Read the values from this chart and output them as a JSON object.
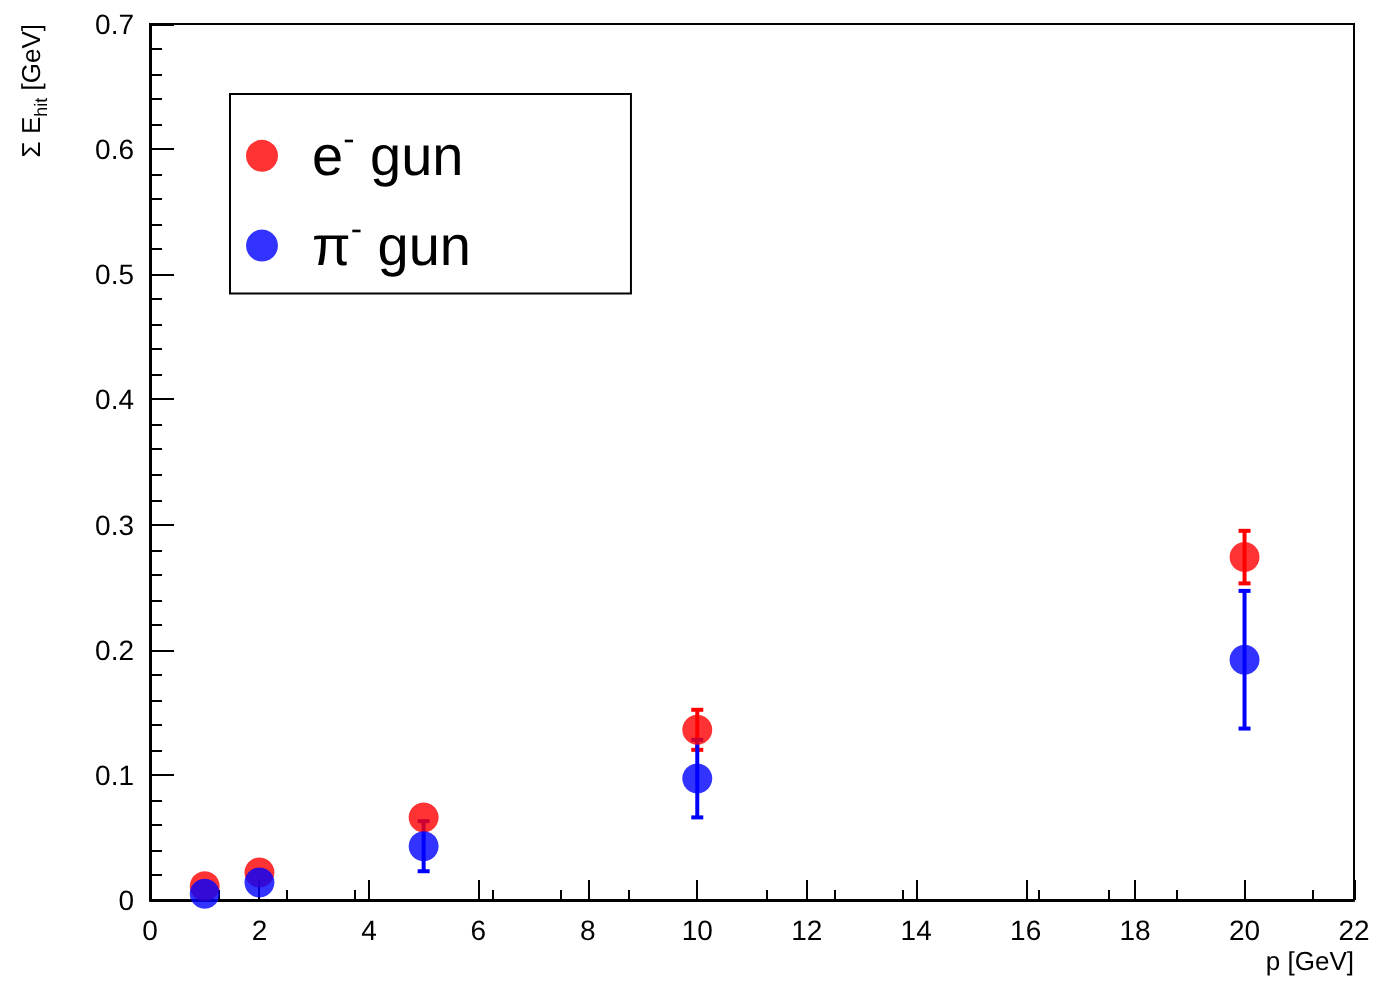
{
  "chart_data": {
    "type": "scatter",
    "xlabel": "p [GeV]",
    "ylabel": "Σ E$_{hit}$ [GeV]",
    "x": [
      1,
      2,
      5,
      10,
      20
    ],
    "series": [
      {
        "name": "e$^{-}$ gun",
        "color": "#ff0000",
        "values": [
          0.011,
          0.022,
          0.066,
          0.136,
          0.274
        ],
        "errors": [
          null,
          null,
          null,
          0.016,
          0.021
        ]
      },
      {
        "name": "π$^{-}$ gun",
        "color": "#0000ff",
        "values": [
          0.005,
          0.014,
          0.043,
          0.097,
          0.192
        ],
        "errors": [
          null,
          null,
          0.02,
          0.031,
          0.055
        ]
      }
    ],
    "xlim": [
      0,
      22
    ],
    "xticks": [
      0,
      2,
      4,
      6,
      8,
      10,
      12,
      14,
      16,
      18,
      20,
      22
    ],
    "ylim": [
      0,
      0.7
    ],
    "yticks": [
      0,
      0.1,
      0.2,
      0.3,
      0.4,
      0.5,
      0.6,
      0.7
    ],
    "grid": false,
    "legend": "top left",
    "marker": "circle"
  }
}
